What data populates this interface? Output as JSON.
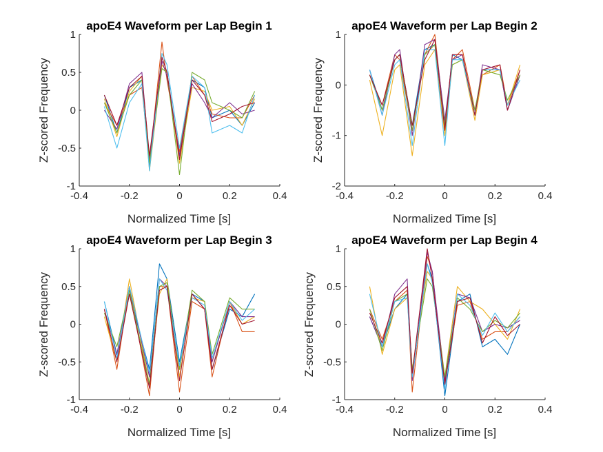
{
  "figure": {
    "panels": [
      {
        "title": "apoE4 Waveform per Lap Begin 1",
        "xlabel": "Normalized Time [s]",
        "ylabel": "Z-scored Frequency"
      },
      {
        "title": "apoE4 Waveform per Lap Begin 2",
        "xlabel": "Normalized Time [s]",
        "ylabel": "Z-scored Frequency"
      },
      {
        "title": "apoE4 Waveform per Lap Begin 3",
        "xlabel": "Normalized Time [s]",
        "ylabel": "Z-scored Frequency"
      },
      {
        "title": "apoE4 Waveform per Lap Begin 4",
        "xlabel": "Normalized Time [s]",
        "ylabel": "Z-scored Frequency"
      }
    ]
  },
  "chart_data": [
    {
      "type": "line",
      "title": "apoE4 Waveform per Lap Begin 1",
      "xlabel": "Normalized Time [s]",
      "ylabel": "Z-scored Frequency",
      "xlim": [
        -0.4,
        0.4
      ],
      "ylim": [
        -1,
        1
      ],
      "xticks": [
        "-0.4",
        "-0.2",
        "0",
        "0.2",
        "0.4"
      ],
      "yticks": [
        "-1",
        "-0.5",
        "0",
        "0.5",
        "1"
      ],
      "x": [
        -0.3,
        -0.25,
        -0.2,
        -0.15,
        -0.12,
        -0.07,
        -0.05,
        0.0,
        0.05,
        0.1,
        0.13,
        0.2,
        0.25,
        0.3
      ],
      "series": [
        {
          "color": "#0072BD",
          "values": [
            0.2,
            -0.3,
            0.3,
            0.4,
            -0.75,
            0.7,
            0.5,
            -0.6,
            0.4,
            0.3,
            -0.1,
            0.0,
            -0.2,
            0.1
          ]
        },
        {
          "color": "#D95319",
          "values": [
            0.1,
            -0.2,
            0.2,
            0.3,
            -0.7,
            0.9,
            0.4,
            -0.55,
            0.45,
            0.2,
            -0.05,
            -0.1,
            -0.1,
            0.2
          ]
        },
        {
          "color": "#EDB120",
          "values": [
            0.15,
            -0.35,
            0.25,
            0.45,
            -0.8,
            0.6,
            0.5,
            -0.7,
            0.3,
            0.25,
            0.0,
            0.05,
            -0.2,
            0.15
          ]
        },
        {
          "color": "#7E2F8E",
          "values": [
            0.0,
            -0.25,
            0.35,
            0.5,
            -0.65,
            0.65,
            0.45,
            -0.6,
            0.35,
            0.1,
            -0.1,
            0.1,
            -0.05,
            0.0
          ]
        },
        {
          "color": "#77AC30",
          "values": [
            0.1,
            -0.3,
            0.2,
            0.4,
            -0.7,
            0.55,
            0.5,
            -0.85,
            0.5,
            0.4,
            0.1,
            0.0,
            -0.1,
            0.25
          ]
        },
        {
          "color": "#4DBEEE",
          "values": [
            0.05,
            -0.5,
            0.1,
            0.35,
            -0.8,
            0.75,
            0.6,
            -0.5,
            0.45,
            0.3,
            -0.3,
            -0.2,
            -0.3,
            0.2
          ]
        },
        {
          "color": "#A2142F",
          "values": [
            0.2,
            -0.2,
            0.3,
            0.45,
            -0.6,
            0.7,
            0.5,
            -0.65,
            0.4,
            0.2,
            -0.15,
            -0.05,
            0.05,
            0.1
          ]
        }
      ]
    },
    {
      "type": "line",
      "title": "apoE4 Waveform per Lap Begin 2",
      "xlabel": "Normalized Time [s]",
      "ylabel": "Z-scored Frequency",
      "xlim": [
        -0.4,
        0.4
      ],
      "ylim": [
        -2,
        1
      ],
      "xticks": [
        "-0.4",
        "-0.2",
        "0",
        "0.2",
        "0.4"
      ],
      "yticks": [
        "-2",
        "-1",
        "0",
        "1"
      ],
      "x": [
        -0.3,
        -0.25,
        -0.2,
        -0.18,
        -0.13,
        -0.08,
        -0.04,
        0.0,
        0.03,
        0.07,
        0.12,
        0.15,
        0.22,
        0.25,
        0.3
      ],
      "series": [
        {
          "color": "#0072BD",
          "values": [
            0.3,
            -0.5,
            0.5,
            0.6,
            -0.8,
            0.7,
            0.8,
            -0.9,
            0.6,
            0.5,
            -0.6,
            0.3,
            0.3,
            -0.5,
            0.2
          ]
        },
        {
          "color": "#D95319",
          "values": [
            0.2,
            -0.4,
            0.6,
            0.5,
            -0.9,
            0.6,
            1.0,
            -0.8,
            0.5,
            0.7,
            -0.5,
            0.2,
            0.4,
            -0.4,
            0.3
          ]
        },
        {
          "color": "#EDB120",
          "values": [
            0.1,
            -1.0,
            0.3,
            0.4,
            -1.4,
            0.4,
            0.7,
            -1.0,
            0.4,
            0.5,
            -0.7,
            0.2,
            0.3,
            -0.4,
            0.4
          ]
        },
        {
          "color": "#7E2F8E",
          "values": [
            0.3,
            -0.6,
            0.6,
            0.7,
            -1.0,
            0.8,
            0.9,
            -0.7,
            0.5,
            0.6,
            -0.6,
            0.4,
            0.3,
            -0.5,
            0.2
          ]
        },
        {
          "color": "#77AC30",
          "values": [
            0.2,
            -0.5,
            0.5,
            0.6,
            -0.9,
            0.6,
            0.8,
            -0.8,
            0.4,
            0.5,
            -0.5,
            0.3,
            0.2,
            -0.3,
            0.2
          ]
        },
        {
          "color": "#4DBEEE",
          "values": [
            0.3,
            -0.6,
            0.4,
            0.5,
            -1.2,
            0.7,
            0.7,
            -1.2,
            0.5,
            0.5,
            -0.6,
            0.3,
            0.3,
            -0.4,
            0.1
          ]
        },
        {
          "color": "#A2142F",
          "values": [
            0.2,
            -0.4,
            0.5,
            0.6,
            -0.8,
            0.5,
            0.9,
            -0.9,
            0.6,
            0.6,
            -0.6,
            0.3,
            0.4,
            -0.5,
            0.3
          ]
        }
      ]
    },
    {
      "type": "line",
      "title": "apoE4 Waveform per Lap Begin 3",
      "xlabel": "Normalized Time [s]",
      "ylabel": "Z-scored Frequency",
      "xlim": [
        -0.4,
        0.4
      ],
      "ylim": [
        -1,
        1
      ],
      "xticks": [
        "-0.4",
        "-0.2",
        "0",
        "0.2",
        "0.4"
      ],
      "yticks": [
        "-1",
        "-0.5",
        "0",
        "0.5",
        "1"
      ],
      "x": [
        -0.3,
        -0.25,
        -0.2,
        -0.12,
        -0.08,
        -0.05,
        0.0,
        0.05,
        0.1,
        0.13,
        0.2,
        0.25,
        0.3
      ],
      "series": [
        {
          "color": "#0072BD",
          "values": [
            0.3,
            -0.4,
            0.4,
            -0.6,
            0.8,
            0.6,
            -0.5,
            0.4,
            0.3,
            -0.6,
            0.2,
            0.1,
            0.4
          ]
        },
        {
          "color": "#D95319",
          "values": [
            0.2,
            -0.6,
            0.5,
            -0.95,
            0.5,
            0.5,
            -0.9,
            0.3,
            0.2,
            -0.7,
            0.3,
            -0.1,
            -0.1
          ]
        },
        {
          "color": "#EDB120",
          "values": [
            0.1,
            -0.5,
            0.6,
            -0.8,
            0.4,
            0.6,
            -0.7,
            0.35,
            0.3,
            -0.5,
            0.3,
            0.0,
            0.1
          ]
        },
        {
          "color": "#7E2F8E",
          "values": [
            0.2,
            -0.4,
            0.5,
            -0.7,
            0.6,
            0.5,
            -0.6,
            0.4,
            0.2,
            -0.5,
            0.3,
            0.1,
            0.1
          ]
        },
        {
          "color": "#77AC30",
          "values": [
            0.15,
            -0.3,
            0.45,
            -0.8,
            0.5,
            0.55,
            -0.6,
            0.45,
            0.3,
            -0.4,
            0.35,
            0.2,
            0.2
          ]
        },
        {
          "color": "#4DBEEE",
          "values": [
            0.3,
            -0.45,
            0.5,
            -0.65,
            0.6,
            0.45,
            -0.55,
            0.35,
            0.25,
            -0.45,
            0.3,
            0.05,
            0.2
          ]
        },
        {
          "color": "#A2142F",
          "values": [
            0.2,
            -0.5,
            0.4,
            -0.85,
            0.45,
            0.5,
            -0.75,
            0.4,
            0.2,
            -0.6,
            0.25,
            0.0,
            0.05
          ]
        }
      ]
    },
    {
      "type": "line",
      "title": "apoE4 Waveform per Lap Begin 4",
      "xlabel": "Normalized Time [s]",
      "ylabel": "Z-scored Frequency",
      "xlim": [
        -0.4,
        0.4
      ],
      "ylim": [
        -1,
        1
      ],
      "xticks": [
        "-0.4",
        "-0.2",
        "0",
        "0.2",
        "0.4"
      ],
      "yticks": [
        "-1",
        "-0.5",
        "0",
        "0.5",
        "1"
      ],
      "x": [
        -0.3,
        -0.25,
        -0.2,
        -0.15,
        -0.13,
        -0.07,
        -0.05,
        0.0,
        0.05,
        0.1,
        0.15,
        0.2,
        0.25,
        0.3
      ],
      "series": [
        {
          "color": "#0072BD",
          "values": [
            0.1,
            -0.3,
            0.2,
            0.4,
            -0.7,
            0.8,
            0.6,
            -0.95,
            0.3,
            0.4,
            -0.3,
            -0.2,
            -0.4,
            0.0
          ]
        },
        {
          "color": "#D95319",
          "values": [
            0.2,
            -0.2,
            0.3,
            0.45,
            -0.9,
            0.9,
            0.7,
            -0.8,
            0.25,
            0.3,
            -0.2,
            -0.1,
            -0.1,
            0.1
          ]
        },
        {
          "color": "#EDB120",
          "values": [
            0.5,
            -0.4,
            0.2,
            0.35,
            -0.6,
            0.7,
            0.6,
            -0.7,
            0.5,
            0.3,
            0.2,
            0.0,
            -0.2,
            0.2
          ]
        },
        {
          "color": "#7E2F8E",
          "values": [
            0.1,
            -0.3,
            0.4,
            0.6,
            -0.75,
            0.95,
            0.7,
            -0.75,
            0.4,
            0.35,
            -0.1,
            0.0,
            -0.05,
            0.05
          ]
        },
        {
          "color": "#77AC30",
          "values": [
            0.2,
            -0.35,
            0.3,
            0.4,
            -0.6,
            0.6,
            0.5,
            -0.7,
            0.35,
            0.2,
            -0.1,
            0.05,
            -0.05,
            0.15
          ]
        },
        {
          "color": "#4DBEEE",
          "values": [
            0.4,
            -0.3,
            0.3,
            0.35,
            -0.7,
            0.8,
            0.55,
            -0.85,
            0.4,
            0.25,
            -0.15,
            0.15,
            -0.1,
            0.1
          ]
        },
        {
          "color": "#A2142F",
          "values": [
            0.15,
            -0.25,
            0.35,
            0.5,
            -0.65,
            1.0,
            0.6,
            -0.8,
            0.3,
            0.35,
            -0.25,
            0.1,
            -0.15,
            0.0
          ]
        }
      ]
    }
  ]
}
